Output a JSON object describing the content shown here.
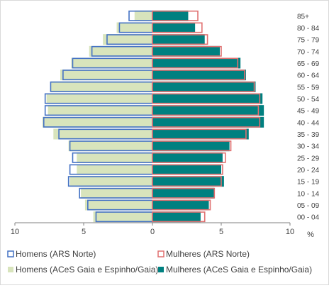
{
  "chart_data": {
    "type": "bar",
    "orientation": "horizontal",
    "layout": "population-pyramid",
    "categories": [
      "00 - 04",
      "05 - 09",
      "10 - 14",
      "15 - 19",
      "20 - 24",
      "25 - 29",
      "30 - 34",
      "35 - 39",
      "40 - 44",
      "45 - 49",
      "50 - 54",
      "55 - 59",
      "60 - 64",
      "65 - 69",
      "70 - 74",
      "75 - 79",
      "80 - 84",
      "85+"
    ],
    "unit_label": "%",
    "x_ticks": [
      "10",
      "5",
      "0",
      "5",
      "10"
    ],
    "xlim": [
      -10,
      10
    ],
    "series": [
      {
        "name": "Homens (ARS Norte)",
        "side": "left",
        "style": "outline",
        "color": "#4472c4",
        "values": [
          4.1,
          4.7,
          5.3,
          6.1,
          6.0,
          5.8,
          6.0,
          6.8,
          7.9,
          7.8,
          7.8,
          7.4,
          6.5,
          5.8,
          4.4,
          3.3,
          2.4,
          1.7
        ]
      },
      {
        "name": "Mulheres (ARS Norte)",
        "side": "right",
        "style": "outline",
        "color": "#e07070",
        "values": [
          3.8,
          4.2,
          4.5,
          5.0,
          5.1,
          5.3,
          5.7,
          6.8,
          7.8,
          7.7,
          7.8,
          7.4,
          6.7,
          6.2,
          5.0,
          4.0,
          3.6,
          3.3
        ]
      },
      {
        "name": "Homens (ACeS Gaia e Espinho/Gaia)",
        "side": "left",
        "style": "fill",
        "color": "#d8e4bc",
        "values": [
          4.3,
          4.9,
          5.2,
          6.0,
          5.5,
          5.5,
          6.1,
          7.2,
          8.0,
          7.6,
          7.7,
          7.4,
          6.7,
          5.9,
          4.6,
          3.6,
          2.6,
          1.3
        ]
      },
      {
        "name": "Mulheres (ACeS Gaia e Espinho/Gaia)",
        "side": "right",
        "style": "fill",
        "color": "#008080",
        "values": [
          3.5,
          4.1,
          4.5,
          5.2,
          5.0,
          5.1,
          5.6,
          7.0,
          8.1,
          8.1,
          8.0,
          7.5,
          6.8,
          6.4,
          4.9,
          3.8,
          3.1,
          2.6
        ]
      }
    ]
  }
}
